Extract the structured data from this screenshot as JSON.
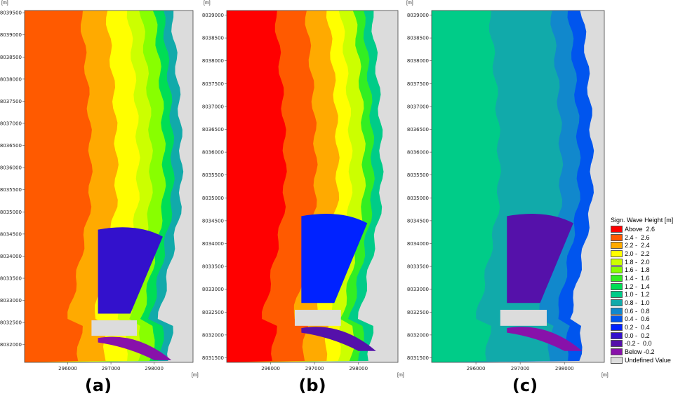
{
  "chart_data": [
    {
      "type": "heatmap",
      "panel_label": "(a)",
      "unit_label": "[m]",
      "xticks": [
        296000,
        297000,
        298000
      ],
      "yticks": [
        8032000,
        8032500,
        8033000,
        8033500,
        8034000,
        8034500,
        8035000,
        8035500,
        8036000,
        8036500,
        8037000,
        8037500,
        8038000,
        8038500,
        8039000,
        8039500
      ],
      "xlim": [
        295000,
        298900
      ],
      "ylim": [
        8031600,
        8039550
      ],
      "offshore_bands": [
        {
          "x_end": 296300,
          "value_class": "2.4 - 2.6"
        },
        {
          "x_end": 296900,
          "value_class": "2.2 - 2.4"
        },
        {
          "x_end": 297400,
          "value_class": "2.0 - 2.2"
        },
        {
          "x_end": 297700,
          "value_class": "1.8 - 2.0"
        },
        {
          "x_end": 298000,
          "value_class": "1.6 - 1.8"
        },
        {
          "x_end": 298200,
          "value_class": "1.2 - 1.4"
        },
        {
          "x_end": 298400,
          "value_class": "0.8 - 1.0"
        }
      ],
      "bay_value_class": "0.0 - 0.2",
      "shore_value_class": "Below -0.2"
    },
    {
      "type": "heatmap",
      "panel_label": "(b)",
      "unit_label": "[m]",
      "xticks": [
        296000,
        297000,
        298000
      ],
      "yticks": [
        8031500,
        8032000,
        8032500,
        8033000,
        8033500,
        8034000,
        8034500,
        8035000,
        8035500,
        8036000,
        8036500,
        8037000,
        8037500,
        8038000,
        8038500,
        8039000
      ],
      "xlim": [
        295000,
        298900
      ],
      "ylim": [
        8031400,
        8039100
      ],
      "offshore_bands": [
        {
          "x_end": 296100,
          "value_class": "Above  2.6"
        },
        {
          "x_end": 296800,
          "value_class": "2.4 - 2.6"
        },
        {
          "x_end": 297300,
          "value_class": "2.2 - 2.4"
        },
        {
          "x_end": 297600,
          "value_class": "2.0 - 2.2"
        },
        {
          "x_end": 297900,
          "value_class": "1.8 - 2.0"
        },
        {
          "x_end": 298100,
          "value_class": "1.4 - 1.6"
        },
        {
          "x_end": 298300,
          "value_class": "1.0 - 1.2"
        }
      ],
      "bay_value_class": "0.2 - 0.4",
      "shore_value_class": "-0.2 - 0.0"
    },
    {
      "type": "heatmap",
      "panel_label": "(c)",
      "unit_label": "[m]",
      "xticks": [
        296000,
        297000,
        298000
      ],
      "yticks": [
        8031500,
        8032000,
        8032500,
        8033000,
        8033500,
        8034000,
        8034500,
        8035000,
        8035500,
        8036000,
        8036500,
        8037000,
        8037500,
        8038000,
        8038500,
        8039000
      ],
      "xlim": [
        295000,
        298900
      ],
      "ylim": [
        8031400,
        8039100
      ],
      "offshore_bands": [
        {
          "x_end": 296300,
          "value_class": "1.0 - 1.2"
        },
        {
          "x_end": 297700,
          "value_class": "0.8 - 1.0"
        },
        {
          "x_end": 298100,
          "value_class": "0.6 - 0.8"
        },
        {
          "x_end": 298400,
          "value_class": "0.4 - 0.6"
        }
      ],
      "bay_value_class": "-0.2 - 0.0",
      "shore_value_class": "Below -0.2"
    }
  ],
  "legend": {
    "title": "Sign. Wave Height [m]",
    "entries": [
      {
        "label": "Above  2.6",
        "color": "#ff0000"
      },
      {
        "label": "2.4 -  2.6",
        "color": "#ff5a00"
      },
      {
        "label": "2.2 -  2.4",
        "color": "#ffaa00"
      },
      {
        "label": "2.0 -  2.2",
        "color": "#ffff00"
      },
      {
        "label": "1.8 -  2.0",
        "color": "#ccff00"
      },
      {
        "label": "1.6 -  1.8",
        "color": "#88ff00"
      },
      {
        "label": "1.4 -  1.6",
        "color": "#33ee22"
      },
      {
        "label": "1.2 -  1.4",
        "color": "#00dd55"
      },
      {
        "label": "1.0 -  1.2",
        "color": "#00cc88"
      },
      {
        "label": "0.8 -  1.0",
        "color": "#11aaaa"
      },
      {
        "label": "0.6 -  0.8",
        "color": "#1188cc"
      },
      {
        "label": "0.4 -  0.6",
        "color": "#0055ee"
      },
      {
        "label": "0.2 -  0.4",
        "color": "#0022ff"
      },
      {
        "label": "0.0 -  0.2",
        "color": "#3311cc"
      },
      {
        "label": "-0.2 -  0.0",
        "color": "#5511aa"
      },
      {
        "label": "Below -0.2",
        "color": "#8811aa"
      },
      {
        "label": "Undefined Value",
        "color": "#dcdcdc"
      }
    ]
  }
}
